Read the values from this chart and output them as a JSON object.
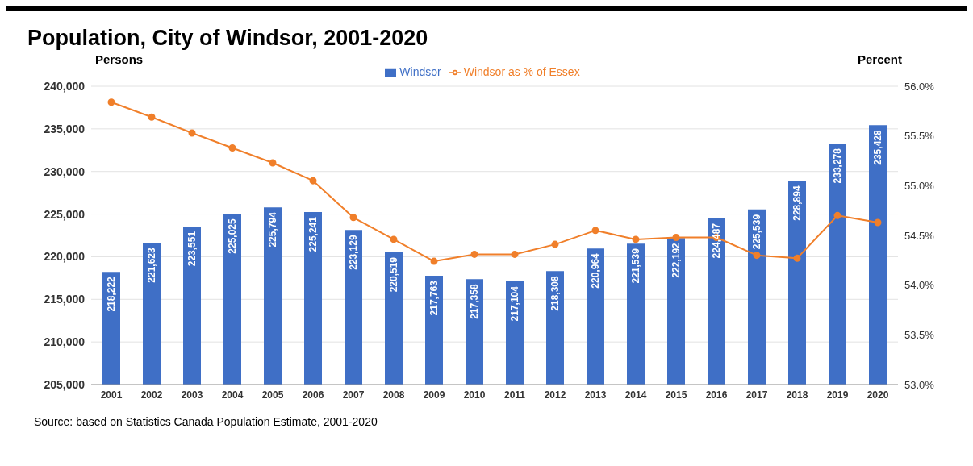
{
  "chart_data": {
    "type": "bar",
    "title": "Population, City of Windsor, 2001-2020",
    "ylabel": "Persons",
    "y2label": "Percent",
    "annotations": [
      "Source: based on Statistics Canada Population Estimate, 2001-2020"
    ],
    "categories": [
      "2001",
      "2002",
      "2003",
      "2004",
      "2005",
      "2006",
      "2007",
      "2008",
      "2009",
      "2010",
      "2011",
      "2012",
      "2013",
      "2014",
      "2015",
      "2016",
      "2017",
      "2018",
      "2019",
      "2020"
    ],
    "series": [
      {
        "name": "Windsor",
        "color": "#3f6fc6",
        "values": [
          218222,
          221623,
          223551,
          225025,
          225794,
          225241,
          223129,
          220519,
          217763,
          217358,
          217104,
          218308,
          220964,
          221539,
          222192,
          224487,
          225539,
          228894,
          233278,
          235428
        ],
        "value_labels": [
          "218,222",
          "221,623",
          "223,551",
          "225,025",
          "225,794",
          "225,241",
          "223,129",
          "220,519",
          "217,763",
          "217,358",
          "217,104",
          "218,308",
          "220,964",
          "221,539",
          "222,192",
          "224,487",
          "225,539",
          "228,894",
          "233,278",
          "235,428"
        ]
      },
      {
        "name": "Windsor as % of Essex",
        "type": "line",
        "axis": "y2",
        "color": "#f07f2a",
        "values": [
          55.84,
          55.69,
          55.53,
          55.38,
          55.23,
          55.05,
          54.68,
          54.46,
          54.24,
          54.31,
          54.31,
          54.41,
          54.55,
          54.46,
          54.48,
          54.48,
          54.3,
          54.27,
          54.7,
          54.63
        ]
      }
    ],
    "ylim": [
      205000,
      240000
    ],
    "yticks": [
      {
        "value": 205000,
        "label": "205,000"
      },
      {
        "value": 210000,
        "label": "210,000"
      },
      {
        "value": 215000,
        "label": "215,000"
      },
      {
        "value": 220000,
        "label": "220,000"
      },
      {
        "value": 225000,
        "label": "225,000"
      },
      {
        "value": 230000,
        "label": "230,000"
      },
      {
        "value": 235000,
        "label": "235,000"
      },
      {
        "value": 240000,
        "label": "240,000"
      }
    ],
    "y2lim": [
      53,
      56
    ],
    "y2ticks": [
      {
        "value": 53,
        "label": "53.0%"
      },
      {
        "value": 53.5,
        "label": "53.5%"
      },
      {
        "value": 54,
        "label": "54.0%"
      },
      {
        "value": 54.5,
        "label": "54.5%"
      },
      {
        "value": 55,
        "label": "55.0%"
      },
      {
        "value": 55.5,
        "label": "55.5%"
      },
      {
        "value": 56,
        "label": "56.0%"
      }
    ],
    "grid": "y",
    "legend": "top",
    "marker": "circle",
    "line_style": "solid"
  }
}
